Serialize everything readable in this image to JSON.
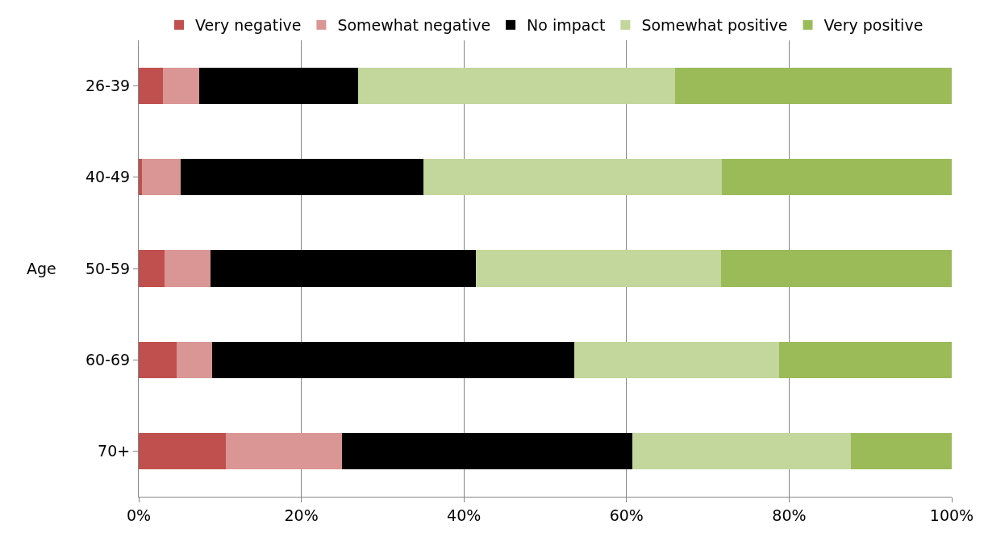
{
  "chart_data": {
    "type": "bar",
    "orientation": "horizontal",
    "stacked": true,
    "ylabel": "Age",
    "categories": [
      "26-39",
      "40-49",
      "50-59",
      "60-69",
      "70+"
    ],
    "series": [
      {
        "name": "Very negative",
        "color": "#c0504d",
        "values": [
          3.0,
          0.4,
          3.2,
          4.7,
          10.7
        ]
      },
      {
        "name": "Somewhat negative",
        "color": "#d99694",
        "values": [
          4.4,
          4.8,
          5.6,
          4.3,
          14.3
        ]
      },
      {
        "name": "No impact",
        "color": "#000000",
        "values": [
          19.6,
          29.8,
          32.7,
          44.6,
          35.7
        ]
      },
      {
        "name": "Somewhat positive",
        "color": "#c3d69b",
        "values": [
          39.0,
          36.7,
          30.1,
          25.2,
          26.9
        ]
      },
      {
        "name": "Very positive",
        "color": "#9bbb59",
        "values": [
          34.0,
          28.3,
          28.4,
          21.2,
          12.4
        ]
      }
    ],
    "xlim": [
      0,
      100
    ],
    "xticks": [
      {
        "value": 0,
        "label": "0%"
      },
      {
        "value": 20,
        "label": "20%"
      },
      {
        "value": 40,
        "label": "40%"
      },
      {
        "value": 60,
        "label": "60%"
      },
      {
        "value": 80,
        "label": "80%"
      },
      {
        "value": 100,
        "label": "100%"
      }
    ],
    "grid": "x",
    "legend": "top"
  }
}
